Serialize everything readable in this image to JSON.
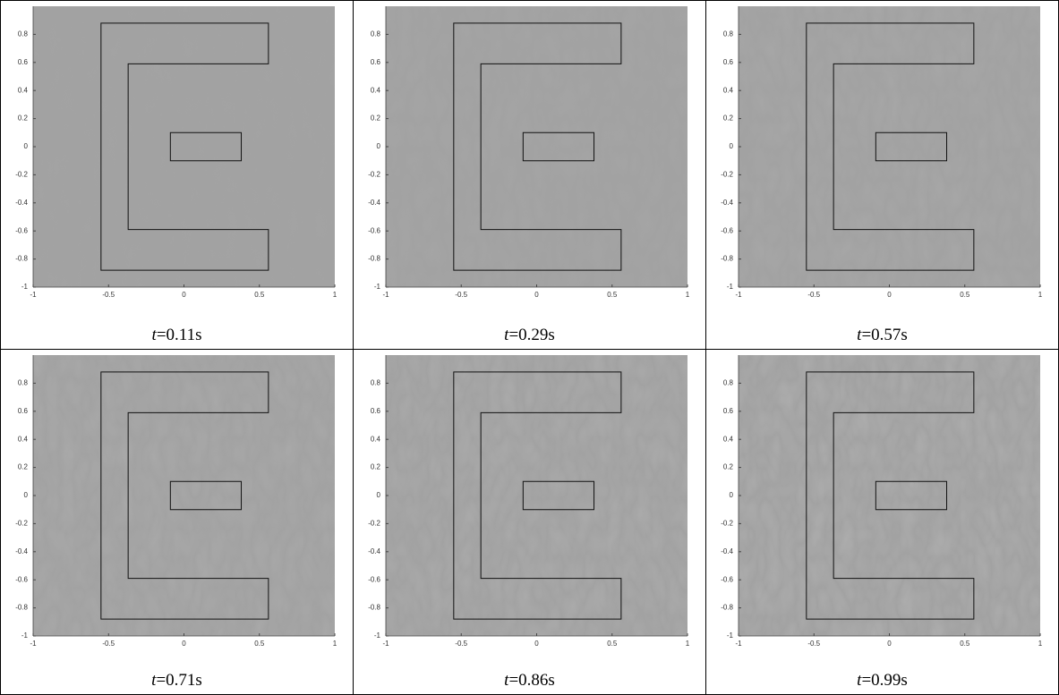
{
  "chart_data": [
    {
      "type": "field",
      "caption": "t=0.11s",
      "xlim": [
        -1,
        1
      ],
      "ylim": [
        -1,
        1
      ],
      "xticks": [
        -1,
        -0.5,
        0,
        0.5,
        1
      ],
      "yticks": [
        -1,
        -0.8,
        -0.6,
        -0.4,
        -0.2,
        0,
        0.2,
        0.4,
        0.6,
        0.8
      ],
      "outline": [
        [
          [
            -0.55,
            -0.88
          ],
          [
            0.56,
            -0.88
          ],
          [
            0.56,
            -0.59
          ],
          [
            -0.37,
            -0.59
          ],
          [
            -0.37,
            0.59
          ],
          [
            0.56,
            0.59
          ],
          [
            0.56,
            0.88
          ],
          [
            -0.55,
            0.88
          ]
        ],
        [
          [
            -0.09,
            -0.1
          ],
          [
            0.38,
            -0.1
          ],
          [
            0.38,
            0.1
          ],
          [
            -0.09,
            0.1
          ]
        ]
      ]
    },
    {
      "type": "field",
      "caption": "t=0.29s",
      "xlim": [
        -1,
        1
      ],
      "ylim": [
        -1,
        1
      ],
      "xticks": [
        -1,
        -0.5,
        0,
        0.5,
        1
      ],
      "yticks": [
        -1,
        -0.8,
        -0.6,
        -0.4,
        -0.2,
        0,
        0.2,
        0.4,
        0.6,
        0.8
      ],
      "outline": [
        [
          [
            -0.55,
            -0.88
          ],
          [
            0.56,
            -0.88
          ],
          [
            0.56,
            -0.59
          ],
          [
            -0.37,
            -0.59
          ],
          [
            -0.37,
            0.59
          ],
          [
            0.56,
            0.59
          ],
          [
            0.56,
            0.88
          ],
          [
            -0.55,
            0.88
          ]
        ],
        [
          [
            -0.09,
            -0.1
          ],
          [
            0.38,
            -0.1
          ],
          [
            0.38,
            0.1
          ],
          [
            -0.09,
            0.1
          ]
        ]
      ]
    },
    {
      "type": "field",
      "caption": "t=0.57s",
      "xlim": [
        -1,
        1
      ],
      "ylim": [
        -1,
        1
      ],
      "xticks": [
        -1,
        -0.5,
        0,
        0.5,
        1
      ],
      "yticks": [
        -1,
        -0.8,
        -0.6,
        -0.4,
        -0.2,
        0,
        0.2,
        0.4,
        0.6,
        0.8
      ],
      "outline": [
        [
          [
            -0.55,
            -0.88
          ],
          [
            0.56,
            -0.88
          ],
          [
            0.56,
            -0.59
          ],
          [
            -0.37,
            -0.59
          ],
          [
            -0.37,
            0.59
          ],
          [
            0.56,
            0.59
          ],
          [
            0.56,
            0.88
          ],
          [
            -0.55,
            0.88
          ]
        ],
        [
          [
            -0.09,
            -0.1
          ],
          [
            0.38,
            -0.1
          ],
          [
            0.38,
            0.1
          ],
          [
            -0.09,
            0.1
          ]
        ]
      ]
    },
    {
      "type": "field",
      "caption": "t=0.71s",
      "xlim": [
        -1,
        1
      ],
      "ylim": [
        -1,
        1
      ],
      "xticks": [
        -1,
        -0.5,
        0,
        0.5,
        1
      ],
      "yticks": [
        -1,
        -0.8,
        -0.6,
        -0.4,
        -0.2,
        0,
        0.2,
        0.4,
        0.6,
        0.8
      ],
      "outline": [
        [
          [
            -0.55,
            -0.88
          ],
          [
            0.56,
            -0.88
          ],
          [
            0.56,
            -0.59
          ],
          [
            -0.37,
            -0.59
          ],
          [
            -0.37,
            0.59
          ],
          [
            0.56,
            0.59
          ],
          [
            0.56,
            0.88
          ],
          [
            -0.55,
            0.88
          ]
        ],
        [
          [
            -0.09,
            -0.1
          ],
          [
            0.38,
            -0.1
          ],
          [
            0.38,
            0.1
          ],
          [
            -0.09,
            0.1
          ]
        ]
      ]
    },
    {
      "type": "field",
      "caption": "t=0.86s",
      "xlim": [
        -1,
        1
      ],
      "ylim": [
        -1,
        1
      ],
      "xticks": [
        -1,
        -0.5,
        0,
        0.5,
        1
      ],
      "yticks": [
        -1,
        -0.8,
        -0.6,
        -0.4,
        -0.2,
        0,
        0.2,
        0.4,
        0.6,
        0.8
      ],
      "outline": [
        [
          [
            -0.55,
            -0.88
          ],
          [
            0.56,
            -0.88
          ],
          [
            0.56,
            -0.59
          ],
          [
            -0.37,
            -0.59
          ],
          [
            -0.37,
            0.59
          ],
          [
            0.56,
            0.59
          ],
          [
            0.56,
            0.88
          ],
          [
            -0.55,
            0.88
          ]
        ],
        [
          [
            -0.09,
            -0.1
          ],
          [
            0.38,
            -0.1
          ],
          [
            0.38,
            0.1
          ],
          [
            -0.09,
            0.1
          ]
        ]
      ]
    },
    {
      "type": "field",
      "caption": "t=0.99s",
      "xlim": [
        -1,
        1
      ],
      "ylim": [
        -1,
        1
      ],
      "xticks": [
        -1,
        -0.5,
        0,
        0.5,
        1
      ],
      "yticks": [
        -1,
        -0.8,
        -0.6,
        -0.4,
        -0.2,
        0,
        0.2,
        0.4,
        0.6,
        0.8
      ],
      "outline": [
        [
          [
            -0.55,
            -0.88
          ],
          [
            0.56,
            -0.88
          ],
          [
            0.56,
            -0.59
          ],
          [
            -0.37,
            -0.59
          ],
          [
            -0.37,
            0.59
          ],
          [
            0.56,
            0.59
          ],
          [
            0.56,
            0.88
          ],
          [
            -0.55,
            0.88
          ]
        ],
        [
          [
            -0.09,
            -0.1
          ],
          [
            0.38,
            -0.1
          ],
          [
            0.38,
            0.1
          ],
          [
            -0.09,
            0.1
          ]
        ]
      ]
    }
  ]
}
